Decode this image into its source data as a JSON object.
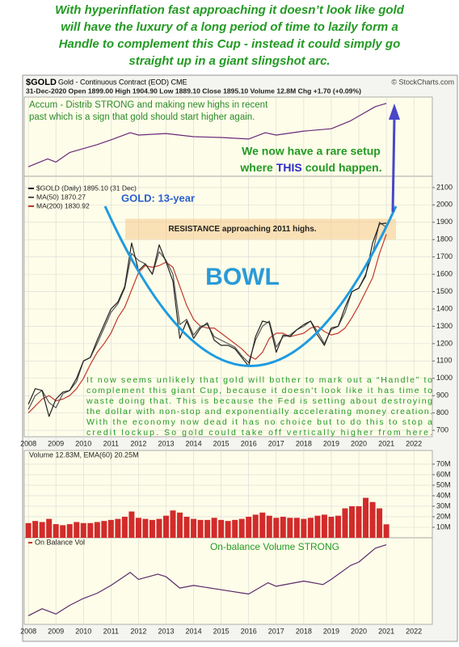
{
  "headline": [
    "With hyperinflation fast approaching it doesn’t look like gold",
    "will have the luxury of a long period of time to lazily form a",
    "Handle to complement this Cup - instead it could simply go",
    "straight up in a giant slingshot arc."
  ],
  "chart_data": [
    {
      "type": "line",
      "annotation": [
        "Accum - Distrib STRONG and making new highs in recent",
        "past which is a sign that gold should start higher again."
      ],
      "x": [
        2008,
        2008.7,
        2009,
        2009.5,
        2010,
        2010.5,
        2011,
        2011.7,
        2012,
        2013,
        2014,
        2015,
        2016,
        2016.6,
        2017,
        2018,
        2019,
        2019.7,
        2020,
        2020.6,
        2021
      ],
      "values": [
        12,
        22,
        18,
        30,
        35,
        40,
        46,
        55,
        52,
        54,
        50,
        49,
        47,
        55,
        52,
        57,
        60,
        70,
        76,
        88,
        92
      ],
      "color": "#6a2a7a",
      "ylim": [
        0,
        100
      ],
      "xlim": [
        2007.85,
        2022.67
      ]
    },
    {
      "type": "line",
      "symbol": "$GOLD",
      "title": "Gold - Continuous Contract (EOD) CME",
      "source": "© StockCharts.com",
      "info": "31-Dec-2020  Open 1899.00  High 1904.90  Low 1889.10  Close 1895.10  Volume 12.8M  Chg +1.70 (+0.09%)",
      "x": [
        2008,
        2008.25,
        2008.5,
        2008.75,
        2009,
        2009.25,
        2009.5,
        2009.75,
        2010,
        2010.25,
        2010.5,
        2010.75,
        2011,
        2011.25,
        2011.5,
        2011.75,
        2012,
        2012.25,
        2012.5,
        2012.75,
        2013,
        2013.25,
        2013.5,
        2013.75,
        2014,
        2014.25,
        2014.5,
        2014.75,
        2015,
        2015.25,
        2015.5,
        2015.75,
        2016,
        2016.25,
        2016.5,
        2016.75,
        2017,
        2017.25,
        2017.5,
        2017.75,
        2018,
        2018.25,
        2018.5,
        2018.75,
        2019,
        2019.25,
        2019.5,
        2019.75,
        2020,
        2020.25,
        2020.5,
        2020.75,
        2021
      ],
      "series": [
        {
          "name": "$GOLD (Daily) 1895.10 (31 Dec)",
          "color": "#222222",
          "values": [
            850,
            940,
            930,
            780,
            880,
            920,
            930,
            1000,
            1100,
            1120,
            1220,
            1310,
            1400,
            1440,
            1530,
            1780,
            1620,
            1660,
            1600,
            1770,
            1670,
            1560,
            1230,
            1330,
            1230,
            1290,
            1320,
            1220,
            1190,
            1190,
            1170,
            1120,
            1070,
            1240,
            1330,
            1320,
            1150,
            1250,
            1240,
            1280,
            1310,
            1330,
            1250,
            1190,
            1290,
            1300,
            1410,
            1500,
            1520,
            1590,
            1780,
            1890,
            1895.1
          ]
        },
        {
          "name": "MA(50) 1870.27",
          "color": "#555555",
          "values": [
            820,
            900,
            930,
            860,
            830,
            910,
            930,
            980,
            1100,
            1120,
            1200,
            1290,
            1380,
            1430,
            1520,
            1720,
            1680,
            1660,
            1600,
            1730,
            1680,
            1600,
            1310,
            1340,
            1250,
            1300,
            1310,
            1240,
            1220,
            1200,
            1180,
            1130,
            1090,
            1220,
            1300,
            1330,
            1180,
            1240,
            1250,
            1280,
            1300,
            1330,
            1270,
            1200,
            1280,
            1300,
            1380,
            1500,
            1520,
            1600,
            1720,
            1900,
            1870.27
          ]
        },
        {
          "name": "MA(200) 1830.92",
          "color": "#c0392b",
          "values": [
            800,
            840,
            880,
            900,
            870,
            880,
            900,
            940,
            1000,
            1080,
            1150,
            1200,
            1260,
            1350,
            1410,
            1510,
            1610,
            1650,
            1640,
            1650,
            1670,
            1640,
            1530,
            1420,
            1340,
            1300,
            1290,
            1290,
            1260,
            1230,
            1200,
            1170,
            1130,
            1110,
            1150,
            1230,
            1260,
            1260,
            1240,
            1250,
            1260,
            1290,
            1300,
            1270,
            1250,
            1260,
            1290,
            1350,
            1420,
            1500,
            1580,
            1720,
            1830.92
          ]
        }
      ],
      "xlim": [
        2007.85,
        2022.67
      ],
      "xticks": [
        2008,
        2009,
        2010,
        2011,
        2012,
        2013,
        2014,
        2015,
        2016,
        2017,
        2018,
        2019,
        2020,
        2021,
        2022
      ],
      "ylim": [
        663,
        2165
      ],
      "yticks": [
        700,
        800,
        900,
        1000,
        1100,
        1200,
        1300,
        1400,
        1500,
        1600,
        1700,
        1800,
        1900,
        2000,
        2100
      ],
      "grid": true,
      "resistance_band": [
        1800,
        1920
      ],
      "label_gold": "GOLD: 13-year",
      "label_resistance": "RESISTANCE approaching 2011 highs.",
      "label_bowl": "BOWL",
      "setup_line1": "We now have a rare setup",
      "setup_line2": [
        "where",
        "THIS",
        "could happen."
      ],
      "commentary": [
        "It now seems unlikely that gold will bother to mark out a “Handle” to",
        "complement this giant Cup, because it doesn't look like it has time to",
        "waste doing that. This is because the Fed is setting about destroying",
        "the dollar with non-stop and exponentially accelerating money creation.",
        "With the economy now dead it has no choice but to do this to stop a",
        "credit lockup. So gold could take off vertically higher from here."
      ]
    },
    {
      "type": "bar",
      "title": "Volume 12.83M, EMA(60) 20.25M",
      "x": [
        2008,
        2008.25,
        2008.5,
        2008.75,
        2009,
        2009.25,
        2009.5,
        2009.75,
        2010,
        2010.25,
        2010.5,
        2010.75,
        2011,
        2011.25,
        2011.5,
        2011.75,
        2012,
        2012.25,
        2012.5,
        2012.75,
        2013,
        2013.25,
        2013.5,
        2013.75,
        2014,
        2014.25,
        2014.5,
        2014.75,
        2015,
        2015.25,
        2015.5,
        2015.75,
        2016,
        2016.25,
        2016.5,
        2016.75,
        2017,
        2017.25,
        2017.5,
        2017.75,
        2018,
        2018.25,
        2018.5,
        2018.75,
        2019,
        2019.25,
        2019.5,
        2019.75,
        2020,
        2020.25,
        2020.5,
        2020.75,
        2021
      ],
      "values": [
        14000000,
        16000000,
        15000000,
        18000000,
        13000000,
        12000000,
        13000000,
        15000000,
        14000000,
        14000000,
        15000000,
        16000000,
        17000000,
        18000000,
        20000000,
        25000000,
        19000000,
        18000000,
        17000000,
        18000000,
        21000000,
        26000000,
        24000000,
        20000000,
        18000000,
        17000000,
        17000000,
        19000000,
        17000000,
        16000000,
        17000000,
        18000000,
        20000000,
        22000000,
        24000000,
        21000000,
        19000000,
        20000000,
        19000000,
        19000000,
        18000000,
        19000000,
        21000000,
        22000000,
        20000000,
        21000000,
        28000000,
        30000000,
        30000000,
        38000000,
        34000000,
        28000000,
        12830000
      ],
      "color": "#d22b2b",
      "xlim": [
        2007.85,
        2022.67
      ],
      "ylim": [
        0,
        83000000
      ],
      "yticks": [
        {
          "value": 10000000,
          "label": "10M"
        },
        {
          "value": 20000000,
          "label": "20M"
        },
        {
          "value": 30000000,
          "label": "30M"
        },
        {
          "value": 40000000,
          "label": "40M"
        },
        {
          "value": 50000000,
          "label": "50M"
        },
        {
          "value": 60000000,
          "label": "60M"
        },
        {
          "value": 70000000,
          "label": "70M"
        }
      ],
      "grid": true
    },
    {
      "type": "line",
      "title": "On Balance Vol",
      "annotation": "On-balance Volume STRONG",
      "x": [
        2008,
        2008.5,
        2009,
        2009.5,
        2010,
        2010.5,
        2011,
        2011.7,
        2012,
        2012.7,
        2013,
        2013.5,
        2014,
        2015,
        2016,
        2016.7,
        2017,
        2018,
        2018.7,
        2019,
        2019.7,
        2020,
        2020.6,
        2021
      ],
      "values": [
        10,
        18,
        12,
        22,
        30,
        36,
        45,
        60,
        52,
        58,
        55,
        42,
        45,
        40,
        35,
        48,
        44,
        50,
        46,
        52,
        68,
        72,
        88,
        92
      ],
      "color": "#5a2a6a",
      "ylim": [
        0,
        100
      ],
      "xlim": [
        2007.85,
        2022.67
      ],
      "xticks": [
        2008,
        2009,
        2010,
        2011,
        2012,
        2013,
        2014,
        2015,
        2016,
        2017,
        2018,
        2019,
        2020,
        2021,
        2022
      ]
    }
  ]
}
